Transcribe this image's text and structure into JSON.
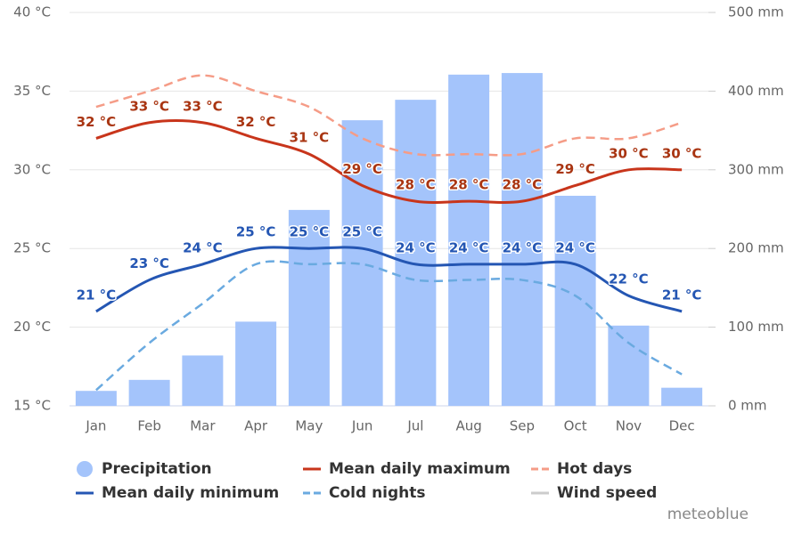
{
  "chart_data": {
    "type": "combo",
    "categories": [
      "Jan",
      "Feb",
      "Mar",
      "Apr",
      "May",
      "Jun",
      "Jul",
      "Aug",
      "Sep",
      "Oct",
      "Nov",
      "Dec"
    ],
    "ylim": [
      15,
      40
    ],
    "yticks": [
      {
        "value": 15,
        "label": "15 °C"
      },
      {
        "value": 20,
        "label": "20 °C"
      },
      {
        "value": 25,
        "label": "25 °C"
      },
      {
        "value": 30,
        "label": "30 °C"
      },
      {
        "value": 35,
        "label": "35 °C"
      },
      {
        "value": 40,
        "label": "40 °C"
      }
    ],
    "y2lim": [
      0,
      500
    ],
    "y2ticks": [
      {
        "value": 0,
        "label": "0 mm"
      },
      {
        "value": 100,
        "label": "100 mm"
      },
      {
        "value": 200,
        "label": "200 mm"
      },
      {
        "value": 300,
        "label": "300 mm"
      },
      {
        "value": 400,
        "label": "400 mm"
      },
      {
        "value": 500,
        "label": "500 mm"
      }
    ],
    "grid": true,
    "series": [
      {
        "name": "Precipitation",
        "type": "bar",
        "axis": "y2",
        "color": "#a4c4fb",
        "values": [
          19,
          33,
          64,
          107,
          249,
          363,
          389,
          421,
          423,
          267,
          102,
          23
        ]
      },
      {
        "name": "Mean daily maximum",
        "type": "line",
        "color": "#c8351b",
        "label_color": "#a93512",
        "values": [
          32,
          33,
          33,
          32,
          31,
          29,
          28,
          28,
          28,
          29,
          30,
          30
        ],
        "value_labels": [
          "32 °C",
          "33 °C",
          "33 °C",
          "32 °C",
          "31 °C",
          "29 °C",
          "28 °C",
          "28 °C",
          "28 °C",
          "29 °C",
          "30 °C",
          "30 °C"
        ]
      },
      {
        "name": "Hot days",
        "type": "line",
        "dashed": true,
        "color": "#f59c87",
        "values": [
          34,
          35,
          36,
          35,
          34,
          32,
          31,
          31,
          31,
          32,
          32,
          33
        ]
      },
      {
        "name": "Mean daily minimum",
        "type": "line",
        "color": "#2456b3",
        "label_color": "#2456b3",
        "values": [
          21,
          23,
          24,
          25,
          25,
          25,
          24,
          24,
          24,
          24,
          22,
          21
        ],
        "value_labels": [
          "21 °C",
          "23 °C",
          "24 °C",
          "25 °C",
          "25 °C",
          "25 °C",
          "24 °C",
          "24 °C",
          "24 °C",
          "24 °C",
          "22 °C",
          "21 °C"
        ]
      },
      {
        "name": "Cold nights",
        "type": "line",
        "dashed": true,
        "color": "#6aaae0",
        "values": [
          16,
          19,
          21.5,
          24,
          24,
          24,
          23,
          23,
          23,
          22,
          19,
          17
        ]
      }
    ],
    "legend_extra": [
      {
        "name": "Wind speed",
        "color": "#cccccc"
      }
    ],
    "credit": "meteoblue"
  }
}
